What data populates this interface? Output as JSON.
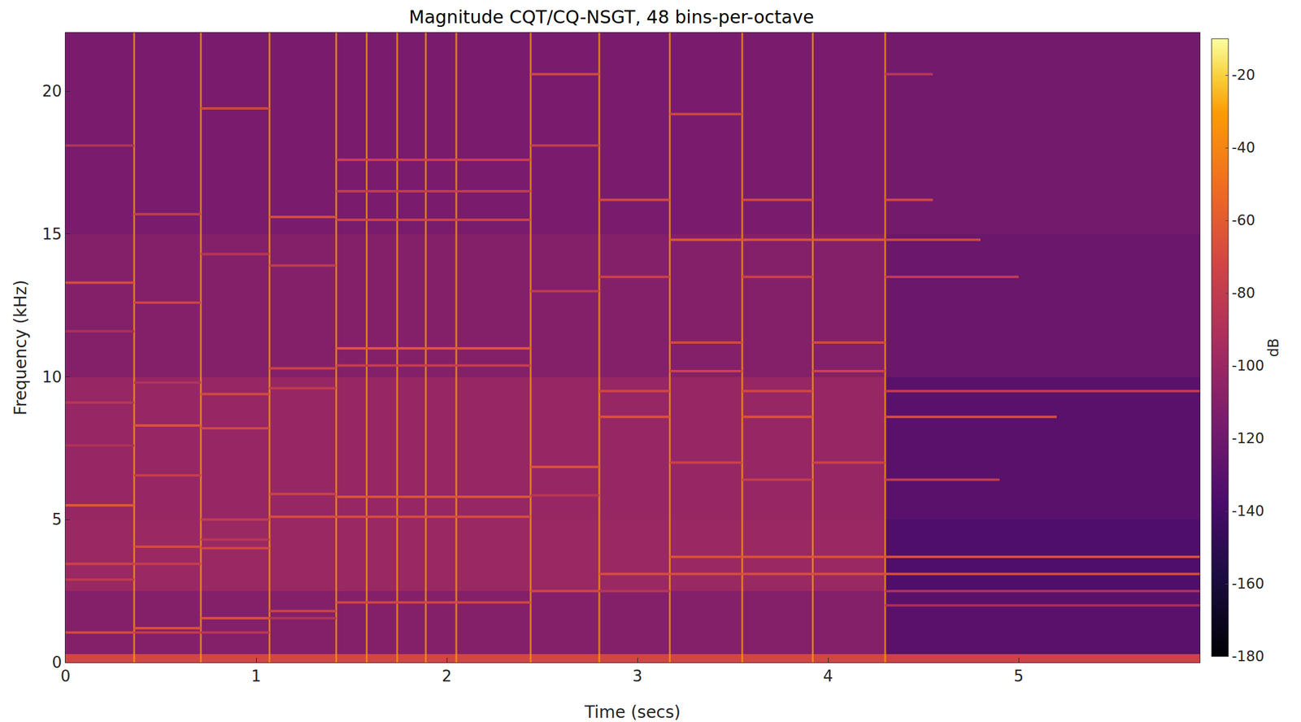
{
  "chart_data": {
    "type": "heatmap",
    "title": "Magnitude CQT/CQ-NSGT, 48 bins-per-octave",
    "xlabel": "Time (secs)",
    "ylabel": "Frequency (kHz)",
    "xlim": [
      0,
      5.95
    ],
    "ylim": [
      0,
      22.05
    ],
    "xticks": [
      0,
      1,
      2,
      3,
      4,
      5
    ],
    "yticks": [
      0,
      5,
      10,
      15,
      20
    ],
    "colorbar": {
      "label": "dB",
      "range": [
        -180,
        -10
      ],
      "ticks": [
        -20,
        -40,
        -60,
        -80,
        -100,
        -120,
        -140,
        -160,
        -180
      ]
    },
    "x": [
      0,
      0.36,
      0.71,
      1.07,
      1.42,
      1.58,
      1.74,
      1.89,
      2.05,
      2.44,
      2.8,
      3.17,
      3.55,
      3.92,
      4.3,
      5.95
    ],
    "y": [
      0,
      0.3,
      2.5,
      5,
      10,
      15,
      22.05
    ],
    "z": [
      [
        -72,
        -72,
        -72,
        -72,
        -72,
        -72,
        -72,
        -72,
        -72,
        -72,
        -72,
        -72,
        -72,
        -72,
        -75
      ],
      [
        -110,
        -110,
        -110,
        -110,
        -110,
        -110,
        -110,
        -110,
        -110,
        -110,
        -110,
        -110,
        -110,
        -110,
        -130
      ],
      [
        -100,
        -100,
        -100,
        -100,
        -100,
        -100,
        -100,
        -100,
        -100,
        -100,
        -100,
        -100,
        -100,
        -100,
        -135
      ],
      [
        -102,
        -102,
        -102,
        -102,
        -102,
        -102,
        -102,
        -102,
        -102,
        -102,
        -102,
        -102,
        -102,
        -102,
        -130
      ],
      [
        -110,
        -110,
        -110,
        -110,
        -110,
        -110,
        -110,
        -110,
        -110,
        -110,
        -110,
        -110,
        -110,
        -110,
        -122
      ],
      [
        -115,
        -115,
        -115,
        -115,
        -115,
        -115,
        -115,
        -115,
        -115,
        -115,
        -115,
        -115,
        -115,
        -115,
        -118
      ]
    ],
    "partials": [
      [
        0,
        0.36,
        13.3,
        -68
      ],
      [
        0,
        0.36,
        5.5,
        -62
      ],
      [
        0,
        0.36,
        3.45,
        -75
      ],
      [
        0,
        0.36,
        2.9,
        -82
      ],
      [
        0,
        0.36,
        1.05,
        -70
      ],
      [
        0,
        0.36,
        9.1,
        -85
      ],
      [
        0,
        0.36,
        7.6,
        -90
      ],
      [
        0,
        0.36,
        18.1,
        -88
      ],
      [
        0,
        0.36,
        11.6,
        -92
      ],
      [
        0.36,
        0.71,
        12.6,
        -75
      ],
      [
        0.36,
        0.71,
        8.3,
        -65
      ],
      [
        0.36,
        0.71,
        6.55,
        -78
      ],
      [
        0.36,
        0.71,
        4.05,
        -68
      ],
      [
        0.36,
        0.71,
        3.45,
        -78
      ],
      [
        0.36,
        0.71,
        1.2,
        -65
      ],
      [
        0.36,
        0.71,
        15.7,
        -78
      ],
      [
        0.36,
        0.71,
        9.8,
        -88
      ],
      [
        0.36,
        0.71,
        1.05,
        -80
      ],
      [
        0.71,
        1.07,
        19.4,
        -72
      ],
      [
        0.71,
        1.07,
        14.3,
        -85
      ],
      [
        0.71,
        1.07,
        9.4,
        -70
      ],
      [
        0.71,
        1.07,
        8.2,
        -72
      ],
      [
        0.71,
        1.07,
        5.0,
        -80
      ],
      [
        0.71,
        1.07,
        4.3,
        -85
      ],
      [
        0.71,
        1.07,
        4.0,
        -72
      ],
      [
        0.71,
        1.07,
        1.55,
        -65
      ],
      [
        0.71,
        1.07,
        1.05,
        -85
      ],
      [
        1.07,
        1.42,
        15.6,
        -68
      ],
      [
        1.07,
        1.42,
        13.9,
        -80
      ],
      [
        1.07,
        1.42,
        10.3,
        -75
      ],
      [
        1.07,
        1.42,
        9.6,
        -80
      ],
      [
        1.07,
        1.42,
        5.9,
        -75
      ],
      [
        1.07,
        1.42,
        5.1,
        -68
      ],
      [
        1.07,
        1.42,
        1.8,
        -75
      ],
      [
        1.07,
        1.42,
        1.55,
        -88
      ],
      [
        1.42,
        2.44,
        17.6,
        -75
      ],
      [
        1.42,
        2.44,
        16.5,
        -80
      ],
      [
        1.42,
        2.44,
        15.5,
        -75
      ],
      [
        1.42,
        2.44,
        11.0,
        -62
      ],
      [
        1.42,
        2.44,
        10.4,
        -78
      ],
      [
        1.42,
        2.44,
        5.8,
        -65
      ],
      [
        1.42,
        2.44,
        5.1,
        -68
      ],
      [
        1.42,
        2.44,
        2.1,
        -72
      ],
      [
        2.44,
        2.8,
        20.6,
        -72
      ],
      [
        2.44,
        2.8,
        18.1,
        -78
      ],
      [
        2.44,
        2.8,
        13.0,
        -82
      ],
      [
        2.44,
        2.8,
        6.85,
        -65
      ],
      [
        2.44,
        2.8,
        5.85,
        -85
      ],
      [
        2.44,
        2.8,
        2.5,
        -72
      ],
      [
        2.8,
        3.17,
        16.2,
        -70
      ],
      [
        2.8,
        3.17,
        13.5,
        -75
      ],
      [
        2.8,
        3.17,
        9.5,
        -72
      ],
      [
        2.8,
        3.17,
        8.6,
        -65
      ],
      [
        2.8,
        5.95,
        3.1,
        -68
      ],
      [
        2.8,
        3.17,
        2.5,
        -85
      ],
      [
        3.17,
        3.55,
        19.2,
        -72
      ],
      [
        3.17,
        3.55,
        14.8,
        -62
      ],
      [
        3.17,
        3.55,
        11.2,
        -70
      ],
      [
        3.17,
        3.55,
        10.2,
        -75
      ],
      [
        3.17,
        3.55,
        7.0,
        -75
      ],
      [
        3.17,
        5.95,
        3.7,
        -65
      ],
      [
        3.55,
        3.92,
        16.2,
        -70
      ],
      [
        3.55,
        3.92,
        14.8,
        -65
      ],
      [
        3.55,
        3.92,
        13.5,
        -75
      ],
      [
        3.55,
        3.92,
        9.5,
        -72
      ],
      [
        3.55,
        3.92,
        8.6,
        -65
      ],
      [
        3.55,
        3.92,
        6.4,
        -78
      ],
      [
        3.92,
        4.3,
        14.8,
        -62
      ],
      [
        3.92,
        4.3,
        11.2,
        -70
      ],
      [
        3.92,
        4.3,
        10.2,
        -75
      ],
      [
        3.92,
        4.3,
        7.0,
        -75
      ],
      [
        4.3,
        4.55,
        16.2,
        -70
      ],
      [
        4.3,
        5.0,
        13.5,
        -78
      ],
      [
        4.3,
        5.95,
        9.5,
        -78
      ],
      [
        4.3,
        5.2,
        8.6,
        -68
      ],
      [
        4.3,
        4.9,
        6.4,
        -80
      ],
      [
        4.3,
        5.95,
        2.5,
        -90
      ],
      [
        4.3,
        5.95,
        2.0,
        -92
      ],
      [
        4.3,
        4.8,
        14.8,
        -70
      ],
      [
        4.3,
        4.55,
        20.6,
        -85
      ]
    ]
  }
}
